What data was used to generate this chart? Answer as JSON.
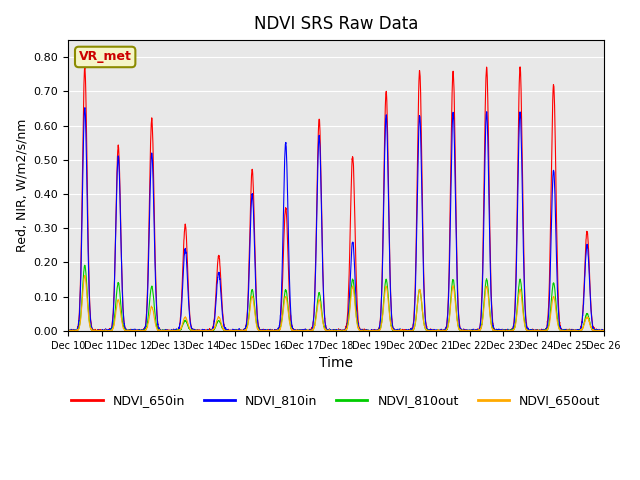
{
  "title": "NDVI SRS Raw Data",
  "xlabel": "Time",
  "ylabel": "Red, NIR, W/m2/s/nm",
  "ylim": [
    0.0,
    0.85
  ],
  "xlim_days": [
    10,
    25
  ],
  "background_color": "#e8e8e8",
  "annotation_text": "VR_met",
  "annotation_color": "#cc0000",
  "annotation_bg": "#f5f5c8",
  "annotation_border": "#8b8b00",
  "colors": {
    "NDVI_650in": "#ff0000",
    "NDVI_810in": "#0000ff",
    "NDVI_810out": "#00cc00",
    "NDVI_650out": "#ffaa00"
  },
  "peaks_650in": [
    0.77,
    0.54,
    0.62,
    0.31,
    0.22,
    0.47,
    0.36,
    0.62,
    0.51,
    0.7,
    0.76,
    0.76,
    0.77,
    0.77,
    0.72,
    0.29
  ],
  "peaks_810in": [
    0.65,
    0.51,
    0.52,
    0.24,
    0.17,
    0.4,
    0.55,
    0.57,
    0.26,
    0.63,
    0.63,
    0.64,
    0.64,
    0.64,
    0.47,
    0.25
  ],
  "peaks_810out": [
    0.19,
    0.14,
    0.13,
    0.03,
    0.03,
    0.12,
    0.12,
    0.11,
    0.15,
    0.15,
    0.12,
    0.15,
    0.15,
    0.15,
    0.14,
    0.05
  ],
  "peaks_650out": [
    0.16,
    0.09,
    0.07,
    0.04,
    0.04,
    0.1,
    0.1,
    0.09,
    0.13,
    0.13,
    0.12,
    0.13,
    0.13,
    0.12,
    0.1,
    0.04
  ],
  "n_days": 16,
  "start_day": 10
}
